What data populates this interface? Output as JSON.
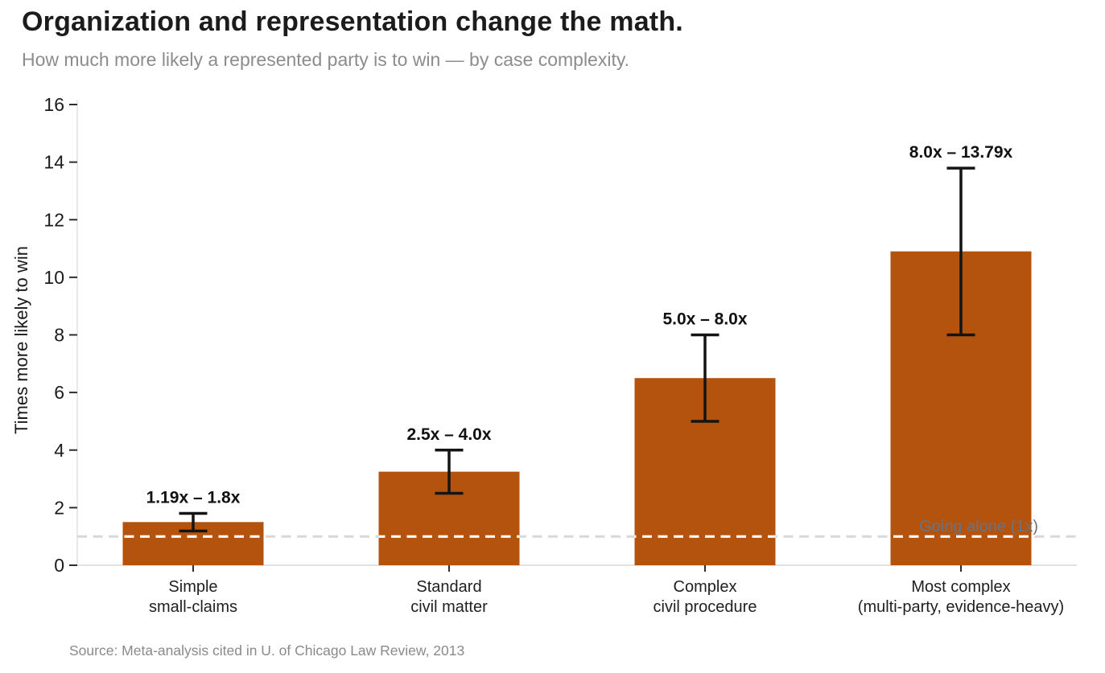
{
  "chart_data": {
    "type": "bar",
    "title": "Organization and representation change the math.",
    "subtitle": "How much more likely a represented party is to win — by case complexity.",
    "ylabel": "Times more likely to win",
    "xlabel": "",
    "source": "Source: Meta-analysis cited in U. of Chicago Law Review, 2013",
    "categories": [
      [
        "Simple",
        "small-claims"
      ],
      [
        "Standard",
        "civil matter"
      ],
      [
        "Complex",
        "civil procedure"
      ],
      [
        "Most complex",
        "(multi-party, evidence-heavy)"
      ]
    ],
    "values": [
      1.5,
      3.25,
      6.5,
      10.9
    ],
    "error_low": [
      1.19,
      2.5,
      5.0,
      8.0
    ],
    "error_high": [
      1.8,
      4.0,
      8.0,
      13.79
    ],
    "range_labels": [
      "1.19x – 1.8x",
      "2.5x – 4.0x",
      "5.0x – 8.0x",
      "8.0x – 13.79x"
    ],
    "yticks": [
      0,
      2,
      4,
      6,
      8,
      10,
      12,
      14,
      16
    ],
    "ylim": [
      0,
      16
    ],
    "grid": "off",
    "legend": "none",
    "baseline": {
      "value": 1,
      "label": "Going alone (1x)"
    },
    "colors": {
      "bar": "#b4530d",
      "error": "#141414",
      "baseline_line": "#d8d8d8",
      "baseline_overlay": "#fdfdfd",
      "baseline_label": "#6b7280",
      "axis": "#e2e2e2",
      "tick_mark": "#2e2e2e",
      "tick_text": "#1b1b1b",
      "category_text": "#1f1f1f",
      "range_text": "#111111"
    }
  }
}
